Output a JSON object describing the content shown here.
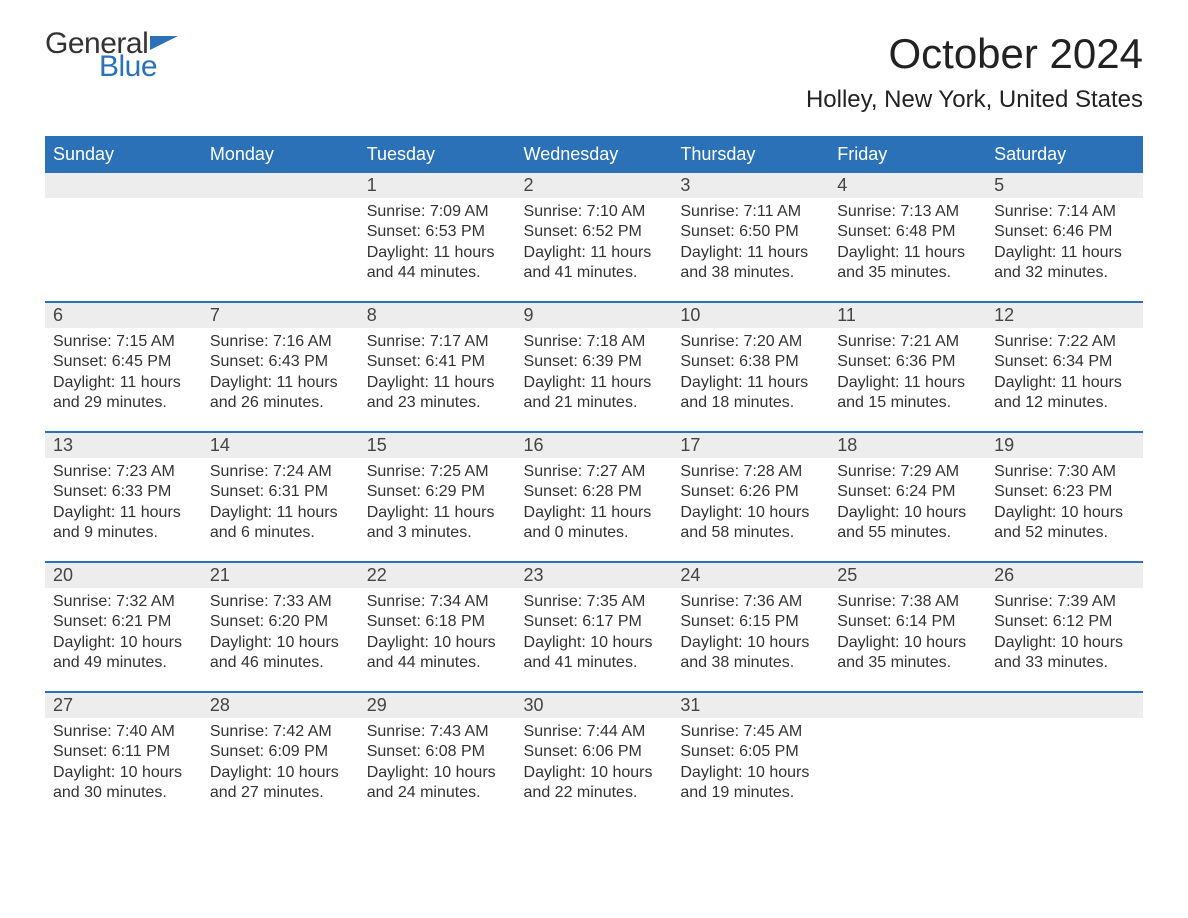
{
  "logo": {
    "part1": "General",
    "part2": "Blue"
  },
  "title": "October 2024",
  "location": "Holley, New York, United States",
  "weekdays": [
    "Sunday",
    "Monday",
    "Tuesday",
    "Wednesday",
    "Thursday",
    "Friday",
    "Saturday"
  ],
  "colors": {
    "header_bg": "#2a71b8",
    "header_text": "#ffffff",
    "daynum_bg": "#ededed",
    "rule": "#2a71b8",
    "text": "#333333",
    "bg": "#ffffff"
  },
  "first_weekday_index": 2,
  "days": [
    {
      "n": 1,
      "sunrise": "7:09 AM",
      "sunset": "6:53 PM",
      "daylight": "11 hours and 44 minutes."
    },
    {
      "n": 2,
      "sunrise": "7:10 AM",
      "sunset": "6:52 PM",
      "daylight": "11 hours and 41 minutes."
    },
    {
      "n": 3,
      "sunrise": "7:11 AM",
      "sunset": "6:50 PM",
      "daylight": "11 hours and 38 minutes."
    },
    {
      "n": 4,
      "sunrise": "7:13 AM",
      "sunset": "6:48 PM",
      "daylight": "11 hours and 35 minutes."
    },
    {
      "n": 5,
      "sunrise": "7:14 AM",
      "sunset": "6:46 PM",
      "daylight": "11 hours and 32 minutes."
    },
    {
      "n": 6,
      "sunrise": "7:15 AM",
      "sunset": "6:45 PM",
      "daylight": "11 hours and 29 minutes."
    },
    {
      "n": 7,
      "sunrise": "7:16 AM",
      "sunset": "6:43 PM",
      "daylight": "11 hours and 26 minutes."
    },
    {
      "n": 8,
      "sunrise": "7:17 AM",
      "sunset": "6:41 PM",
      "daylight": "11 hours and 23 minutes."
    },
    {
      "n": 9,
      "sunrise": "7:18 AM",
      "sunset": "6:39 PM",
      "daylight": "11 hours and 21 minutes."
    },
    {
      "n": 10,
      "sunrise": "7:20 AM",
      "sunset": "6:38 PM",
      "daylight": "11 hours and 18 minutes."
    },
    {
      "n": 11,
      "sunrise": "7:21 AM",
      "sunset": "6:36 PM",
      "daylight": "11 hours and 15 minutes."
    },
    {
      "n": 12,
      "sunrise": "7:22 AM",
      "sunset": "6:34 PM",
      "daylight": "11 hours and 12 minutes."
    },
    {
      "n": 13,
      "sunrise": "7:23 AM",
      "sunset": "6:33 PM",
      "daylight": "11 hours and 9 minutes."
    },
    {
      "n": 14,
      "sunrise": "7:24 AM",
      "sunset": "6:31 PM",
      "daylight": "11 hours and 6 minutes."
    },
    {
      "n": 15,
      "sunrise": "7:25 AM",
      "sunset": "6:29 PM",
      "daylight": "11 hours and 3 minutes."
    },
    {
      "n": 16,
      "sunrise": "7:27 AM",
      "sunset": "6:28 PM",
      "daylight": "11 hours and 0 minutes."
    },
    {
      "n": 17,
      "sunrise": "7:28 AM",
      "sunset": "6:26 PM",
      "daylight": "10 hours and 58 minutes."
    },
    {
      "n": 18,
      "sunrise": "7:29 AM",
      "sunset": "6:24 PM",
      "daylight": "10 hours and 55 minutes."
    },
    {
      "n": 19,
      "sunrise": "7:30 AM",
      "sunset": "6:23 PM",
      "daylight": "10 hours and 52 minutes."
    },
    {
      "n": 20,
      "sunrise": "7:32 AM",
      "sunset": "6:21 PM",
      "daylight": "10 hours and 49 minutes."
    },
    {
      "n": 21,
      "sunrise": "7:33 AM",
      "sunset": "6:20 PM",
      "daylight": "10 hours and 46 minutes."
    },
    {
      "n": 22,
      "sunrise": "7:34 AM",
      "sunset": "6:18 PM",
      "daylight": "10 hours and 44 minutes."
    },
    {
      "n": 23,
      "sunrise": "7:35 AM",
      "sunset": "6:17 PM",
      "daylight": "10 hours and 41 minutes."
    },
    {
      "n": 24,
      "sunrise": "7:36 AM",
      "sunset": "6:15 PM",
      "daylight": "10 hours and 38 minutes."
    },
    {
      "n": 25,
      "sunrise": "7:38 AM",
      "sunset": "6:14 PM",
      "daylight": "10 hours and 35 minutes."
    },
    {
      "n": 26,
      "sunrise": "7:39 AM",
      "sunset": "6:12 PM",
      "daylight": "10 hours and 33 minutes."
    },
    {
      "n": 27,
      "sunrise": "7:40 AM",
      "sunset": "6:11 PM",
      "daylight": "10 hours and 30 minutes."
    },
    {
      "n": 28,
      "sunrise": "7:42 AM",
      "sunset": "6:09 PM",
      "daylight": "10 hours and 27 minutes."
    },
    {
      "n": 29,
      "sunrise": "7:43 AM",
      "sunset": "6:08 PM",
      "daylight": "10 hours and 24 minutes."
    },
    {
      "n": 30,
      "sunrise": "7:44 AM",
      "sunset": "6:06 PM",
      "daylight": "10 hours and 22 minutes."
    },
    {
      "n": 31,
      "sunrise": "7:45 AM",
      "sunset": "6:05 PM",
      "daylight": "10 hours and 19 minutes."
    }
  ],
  "labels": {
    "sunrise": "Sunrise: ",
    "sunset": "Sunset: ",
    "daylight": "Daylight: "
  }
}
